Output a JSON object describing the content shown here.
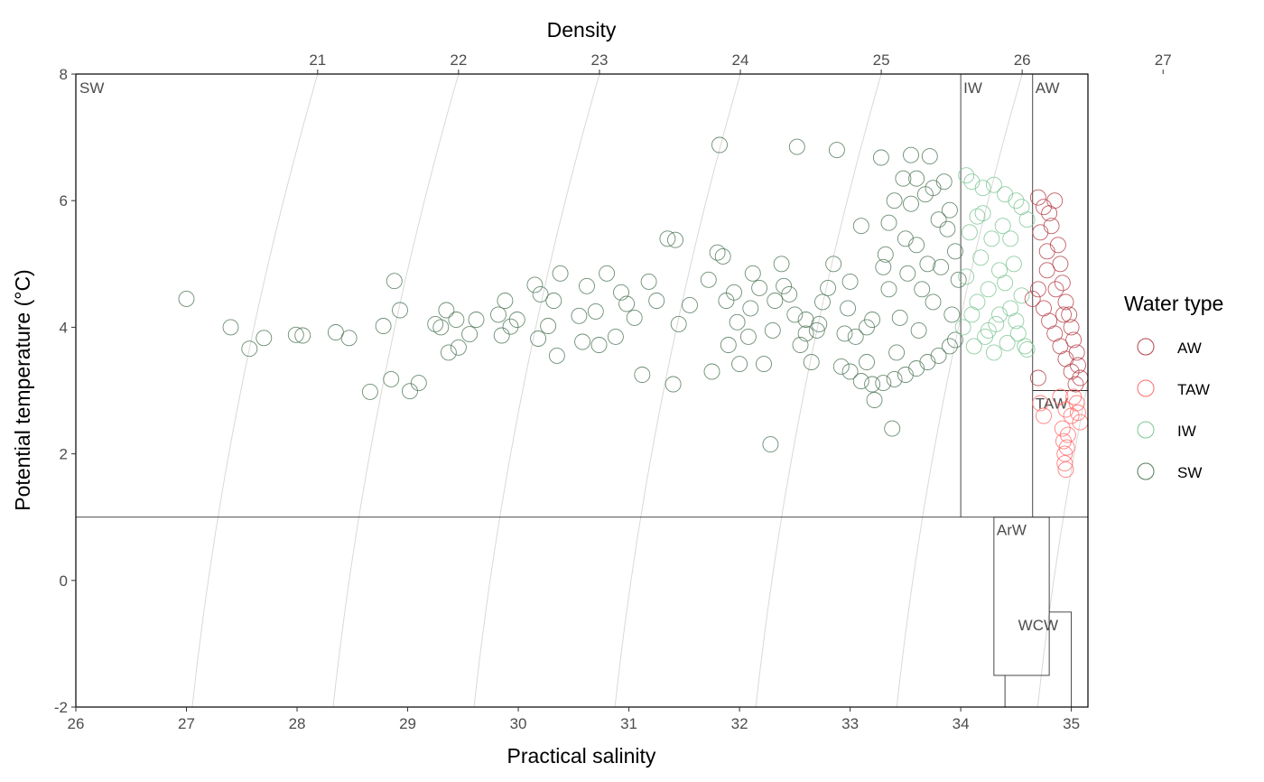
{
  "chart_data": {
    "type": "scatter",
    "xlabel": "Practical salinity",
    "ylabel": "Potential temperature (°C)",
    "x2label": "Density",
    "xlim": [
      26,
      35.15
    ],
    "ylim": [
      -2,
      8
    ],
    "x_ticks": [
      26,
      27,
      28,
      29,
      30,
      31,
      32,
      33,
      34,
      35
    ],
    "y_ticks": [
      -2,
      0,
      2,
      4,
      6,
      8
    ],
    "density_ticks": [
      21,
      22,
      23,
      24,
      25,
      26,
      27
    ],
    "grid": false,
    "legend": {
      "title": "Water type",
      "position": "right",
      "entries": [
        {
          "label": "AW",
          "color": "#b5424a"
        },
        {
          "label": "TAW",
          "color": "#ff6b6b"
        },
        {
          "label": "IW",
          "color": "#7dc693"
        },
        {
          "label": "SW",
          "color": "#527a5a"
        }
      ]
    },
    "regions": [
      {
        "label": "SW",
        "x": [
          26,
          34
        ],
        "y": [
          1,
          8
        ]
      },
      {
        "label": "IW",
        "x": [
          34,
          34.65
        ],
        "y": [
          1,
          8
        ]
      },
      {
        "label": "AW",
        "x": [
          34.65,
          35.15
        ],
        "y": [
          3,
          8
        ]
      },
      {
        "label": "TAW",
        "x": [
          34.65,
          35.15
        ],
        "y": [
          1,
          3
        ]
      },
      {
        "label": "ArW",
        "x": [
          34.3,
          34.8
        ],
        "y": [
          -1.5,
          1
        ]
      },
      {
        "label": "WCW",
        "x": [
          34.4,
          35.0
        ],
        "y": [
          -2,
          -0.5
        ]
      }
    ],
    "series": [
      {
        "name": "SW",
        "points": [
          [
            27.0,
            4.45
          ],
          [
            27.4,
            4.0
          ],
          [
            27.57,
            3.66
          ],
          [
            27.7,
            3.83
          ],
          [
            27.99,
            3.88
          ],
          [
            28.05,
            3.87
          ],
          [
            28.35,
            3.92
          ],
          [
            28.47,
            3.83
          ],
          [
            28.66,
            2.98
          ],
          [
            28.78,
            4.02
          ],
          [
            28.85,
            3.18
          ],
          [
            28.88,
            4.73
          ],
          [
            28.93,
            4.27
          ],
          [
            29.02,
            2.99
          ],
          [
            29.1,
            3.12
          ],
          [
            29.25,
            4.05
          ],
          [
            29.3,
            4.0
          ],
          [
            29.35,
            4.27
          ],
          [
            29.37,
            3.6
          ],
          [
            29.44,
            4.12
          ],
          [
            29.46,
            3.68
          ],
          [
            29.56,
            3.89
          ],
          [
            29.62,
            4.12
          ],
          [
            29.82,
            4.2
          ],
          [
            29.85,
            3.87
          ],
          [
            29.88,
            4.42
          ],
          [
            29.93,
            4.01
          ],
          [
            29.99,
            4.12
          ],
          [
            30.15,
            4.67
          ],
          [
            30.18,
            3.82
          ],
          [
            30.2,
            4.52
          ],
          [
            30.27,
            4.02
          ],
          [
            30.32,
            4.42
          ],
          [
            30.35,
            3.55
          ],
          [
            30.38,
            4.85
          ],
          [
            30.55,
            4.18
          ],
          [
            30.58,
            3.77
          ],
          [
            30.62,
            4.65
          ],
          [
            30.7,
            4.25
          ],
          [
            30.73,
            3.72
          ],
          [
            30.8,
            4.85
          ],
          [
            30.88,
            3.85
          ],
          [
            30.93,
            4.55
          ],
          [
            30.98,
            4.37
          ],
          [
            31.05,
            4.15
          ],
          [
            31.12,
            3.25
          ],
          [
            31.18,
            4.72
          ],
          [
            31.25,
            4.42
          ],
          [
            31.35,
            5.4
          ],
          [
            31.4,
            3.1
          ],
          [
            31.42,
            5.38
          ],
          [
            31.45,
            4.05
          ],
          [
            31.55,
            4.35
          ],
          [
            31.72,
            4.75
          ],
          [
            31.75,
            3.3
          ],
          [
            31.8,
            5.18
          ],
          [
            31.82,
            6.88
          ],
          [
            31.85,
            5.12
          ],
          [
            31.88,
            4.42
          ],
          [
            31.9,
            3.72
          ],
          [
            31.98,
            4.08
          ],
          [
            32.0,
            3.42
          ],
          [
            32.08,
            3.85
          ],
          [
            32.12,
            4.85
          ],
          [
            32.18,
            4.62
          ],
          [
            32.22,
            3.42
          ],
          [
            32.28,
            2.15
          ],
          [
            32.32,
            4.42
          ],
          [
            32.38,
            5.0
          ],
          [
            32.45,
            4.52
          ],
          [
            32.52,
            6.85
          ],
          [
            32.55,
            3.72
          ],
          [
            32.6,
            4.12
          ],
          [
            32.65,
            3.45
          ],
          [
            32.72,
            4.05
          ],
          [
            32.8,
            4.62
          ],
          [
            32.85,
            5.0
          ],
          [
            32.88,
            6.8
          ],
          [
            32.92,
            3.38
          ],
          [
            32.98,
            4.3
          ],
          [
            33.05,
            3.85
          ],
          [
            33.1,
            5.6
          ],
          [
            33.15,
            3.45
          ],
          [
            33.2,
            4.12
          ],
          [
            33.22,
            2.85
          ],
          [
            33.28,
            6.68
          ],
          [
            33.32,
            5.15
          ],
          [
            33.35,
            4.6
          ],
          [
            33.38,
            2.4
          ],
          [
            33.42,
            3.6
          ],
          [
            33.48,
            6.35
          ],
          [
            33.52,
            4.85
          ],
          [
            33.55,
            6.72
          ],
          [
            33.6,
            5.3
          ],
          [
            33.62,
            3.95
          ],
          [
            33.68,
            6.1
          ],
          [
            33.72,
            6.7
          ],
          [
            33.75,
            4.4
          ],
          [
            33.8,
            5.7
          ],
          [
            33.85,
            6.3
          ],
          [
            33.9,
            5.85
          ],
          [
            33.92,
            4.2
          ],
          [
            33.95,
            5.2
          ],
          [
            33.98,
            4.75
          ],
          [
            32.4,
            4.65
          ],
          [
            32.7,
            3.95
          ],
          [
            33.0,
            4.72
          ],
          [
            33.3,
            4.95
          ],
          [
            33.5,
            5.4
          ],
          [
            33.7,
            5.0
          ],
          [
            33.88,
            5.55
          ],
          [
            33.0,
            3.3
          ],
          [
            33.1,
            3.15
          ],
          [
            33.2,
            3.1
          ],
          [
            33.3,
            3.12
          ],
          [
            33.4,
            3.18
          ],
          [
            33.5,
            3.25
          ],
          [
            33.6,
            3.35
          ],
          [
            33.7,
            3.45
          ],
          [
            33.8,
            3.55
          ],
          [
            33.9,
            3.7
          ],
          [
            33.95,
            3.8
          ],
          [
            32.6,
            3.9
          ],
          [
            32.75,
            4.4
          ],
          [
            33.15,
            4.0
          ],
          [
            33.45,
            4.15
          ],
          [
            33.65,
            4.6
          ],
          [
            33.82,
            4.95
          ],
          [
            33.35,
            5.65
          ],
          [
            33.55,
            5.95
          ],
          [
            33.75,
            6.2
          ],
          [
            33.6,
            6.35
          ],
          [
            33.4,
            6.0
          ],
          [
            32.95,
            3.9
          ],
          [
            32.5,
            4.2
          ],
          [
            32.3,
            3.95
          ],
          [
            32.1,
            4.3
          ],
          [
            31.95,
            4.55
          ]
        ]
      },
      {
        "name": "IW",
        "points": [
          [
            34.02,
            4.0
          ],
          [
            34.05,
            4.8
          ],
          [
            34.08,
            5.5
          ],
          [
            34.1,
            6.3
          ],
          [
            34.12,
            3.7
          ],
          [
            34.15,
            4.4
          ],
          [
            34.18,
            5.1
          ],
          [
            34.2,
            6.2
          ],
          [
            34.22,
            3.85
          ],
          [
            34.25,
            4.6
          ],
          [
            34.28,
            5.4
          ],
          [
            34.3,
            6.25
          ],
          [
            34.32,
            4.05
          ],
          [
            34.35,
            4.9
          ],
          [
            34.38,
            5.6
          ],
          [
            34.4,
            6.1
          ],
          [
            34.42,
            3.75
          ],
          [
            34.45,
            4.3
          ],
          [
            34.48,
            5.0
          ],
          [
            34.5,
            6.0
          ],
          [
            34.52,
            3.9
          ],
          [
            34.55,
            4.5
          ],
          [
            34.58,
            3.7
          ],
          [
            34.6,
            5.7
          ],
          [
            34.05,
            6.4
          ],
          [
            34.2,
            5.8
          ],
          [
            34.3,
            3.6
          ],
          [
            34.45,
            5.4
          ],
          [
            34.35,
            4.2
          ],
          [
            34.25,
            3.95
          ],
          [
            34.1,
            4.2
          ],
          [
            34.15,
            5.75
          ],
          [
            34.4,
            4.7
          ],
          [
            34.5,
            4.1
          ],
          [
            34.55,
            5.9
          ],
          [
            34.6,
            3.65
          ]
        ]
      },
      {
        "name": "AW",
        "points": [
          [
            34.7,
            6.05
          ],
          [
            34.75,
            5.9
          ],
          [
            34.8,
            5.8
          ],
          [
            34.85,
            6.0
          ],
          [
            34.72,
            5.5
          ],
          [
            34.78,
            5.2
          ],
          [
            34.82,
            5.6
          ],
          [
            34.88,
            5.3
          ],
          [
            34.9,
            5.0
          ],
          [
            34.92,
            4.7
          ],
          [
            34.95,
            4.4
          ],
          [
            34.98,
            4.2
          ],
          [
            35.0,
            4.0
          ],
          [
            35.02,
            3.8
          ],
          [
            35.05,
            3.6
          ],
          [
            35.06,
            3.4
          ],
          [
            35.08,
            3.2
          ],
          [
            35.04,
            3.1
          ],
          [
            34.7,
            4.6
          ],
          [
            34.75,
            4.3
          ],
          [
            34.8,
            4.1
          ],
          [
            34.85,
            3.9
          ],
          [
            34.9,
            3.7
          ],
          [
            34.95,
            3.5
          ],
          [
            34.7,
            3.2
          ],
          [
            34.65,
            4.45
          ],
          [
            34.78,
            4.9
          ],
          [
            34.86,
            4.6
          ],
          [
            34.93,
            4.2
          ],
          [
            35.0,
            3.3
          ]
        ]
      },
      {
        "name": "TAW",
        "points": [
          [
            34.9,
            2.9
          ],
          [
            34.95,
            2.7
          ],
          [
            35.0,
            2.6
          ],
          [
            35.05,
            2.8
          ],
          [
            35.08,
            2.5
          ],
          [
            34.92,
            2.4
          ],
          [
            34.93,
            2.2
          ],
          [
            34.94,
            2.0
          ],
          [
            34.94,
            1.85
          ],
          [
            34.95,
            1.75
          ],
          [
            34.96,
            2.1
          ],
          [
            34.97,
            2.3
          ],
          [
            35.02,
            2.9
          ],
          [
            35.06,
            2.65
          ],
          [
            34.75,
            2.6
          ],
          [
            34.72,
            2.8
          ]
        ]
      }
    ]
  }
}
